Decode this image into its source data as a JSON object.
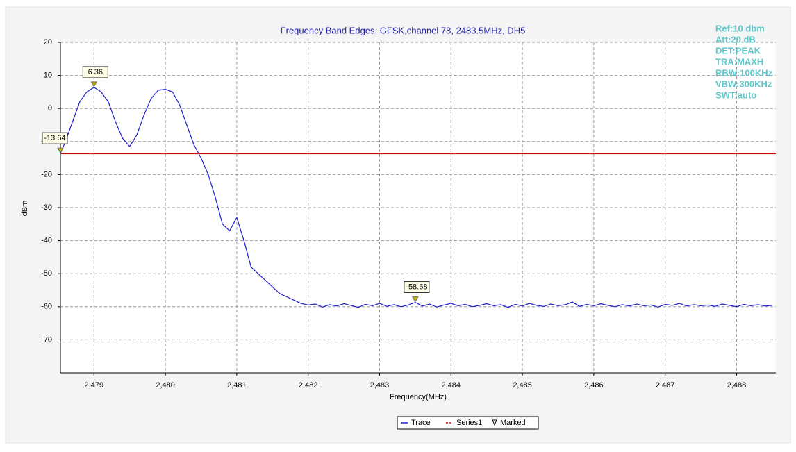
{
  "chart_data": {
    "type": "line",
    "title": "Frequency Band Edges, GFSK,channel 78, 2483.5MHz, DH5",
    "x_label": "Frequency(MHz)",
    "y_label": "dBm",
    "xlim": [
      2478.53,
      2488.55
    ],
    "ylim": [
      -80,
      20
    ],
    "xticks": [
      {
        "value": 2479,
        "label": "2,479"
      },
      {
        "value": 2480,
        "label": "2,480"
      },
      {
        "value": 2481,
        "label": "2,481"
      },
      {
        "value": 2482,
        "label": "2,482"
      },
      {
        "value": 2483,
        "label": "2,483"
      },
      {
        "value": 2484,
        "label": "2,484"
      },
      {
        "value": 2485,
        "label": "2,485"
      },
      {
        "value": 2486,
        "label": "2,486"
      },
      {
        "value": 2487,
        "label": "2,487"
      },
      {
        "value": 2488,
        "label": "2,488"
      }
    ],
    "yticks": [
      20,
      10,
      0,
      -10,
      -20,
      -30,
      -40,
      -50,
      -60,
      -70
    ],
    "grid": true,
    "series": [
      {
        "name": "Trace",
        "color": "#1c1cd0",
        "x": [
          2478.53,
          2478.6,
          2478.7,
          2478.8,
          2478.9,
          2479.0,
          2479.1,
          2479.2,
          2479.3,
          2479.4,
          2479.5,
          2479.6,
          2479.7,
          2479.8,
          2479.9,
          2480.0,
          2480.1,
          2480.2,
          2480.3,
          2480.4,
          2480.5,
          2480.6,
          2480.7,
          2480.8,
          2480.9,
          2481.0,
          2481.1,
          2481.2,
          2481.3,
          2481.4,
          2481.5,
          2481.6,
          2481.7,
          2481.8,
          2481.9,
          2482.0,
          2482.1,
          2482.2,
          2482.3,
          2482.4,
          2482.5,
          2482.6,
          2482.7,
          2482.8,
          2482.9,
          2483.0,
          2483.1,
          2483.2,
          2483.3,
          2483.4,
          2483.5,
          2483.6,
          2483.7,
          2483.8,
          2483.9,
          2484.0,
          2484.1,
          2484.2,
          2484.3,
          2484.4,
          2484.5,
          2484.6,
          2484.7,
          2484.8,
          2484.9,
          2485.0,
          2485.1,
          2485.2,
          2485.3,
          2485.4,
          2485.5,
          2485.6,
          2485.7,
          2485.8,
          2485.9,
          2486.0,
          2486.1,
          2486.2,
          2486.3,
          2486.4,
          2486.5,
          2486.6,
          2486.7,
          2486.8,
          2486.9,
          2487.0,
          2487.1,
          2487.2,
          2487.3,
          2487.4,
          2487.5,
          2487.6,
          2487.7,
          2487.8,
          2487.9,
          2488.0,
          2488.1,
          2488.2,
          2488.3,
          2488.4,
          2488.5
        ],
        "values": [
          -13.6,
          -10,
          -4,
          2,
          5,
          6.4,
          5,
          2,
          -4,
          -9,
          -11.5,
          -8,
          -2,
          3,
          5.5,
          5.8,
          5,
          1,
          -5,
          -11,
          -15,
          -20,
          -27,
          -35,
          -37,
          -33,
          -40,
          -48,
          -50,
          -52,
          -54,
          -56,
          -57,
          -58,
          -59,
          -59.5,
          -59.2,
          -60.1,
          -59.4,
          -59.8,
          -59.1,
          -59.6,
          -60.2,
          -59.3,
          -59.7,
          -59.0,
          -59.9,
          -59.4,
          -60.0,
          -59.5,
          -58.7,
          -59.8,
          -59.2,
          -60.1,
          -59.5,
          -59.0,
          -59.7,
          -59.3,
          -60.0,
          -59.6,
          -59.1,
          -59.7,
          -59.4,
          -60.2,
          -59.3,
          -59.8,
          -59.0,
          -59.6,
          -59.9,
          -59.2,
          -59.7,
          -59.4,
          -58.6,
          -59.9,
          -59.3,
          -59.7,
          -59.1,
          -59.6,
          -60.0,
          -59.4,
          -59.8,
          -59.2,
          -59.7,
          -59.5,
          -60.1,
          -59.3,
          -59.6,
          -59.0,
          -59.8,
          -59.4,
          -59.7,
          -59.5,
          -59.9,
          -59.2,
          -59.6,
          -60.0,
          -59.3,
          -59.7,
          -59.4,
          -59.8,
          -59.6
        ]
      },
      {
        "name": "Series1",
        "color": "#cc1010",
        "x": [
          2478.53,
          2488.55
        ],
        "values": [
          -13.64,
          -13.64
        ]
      }
    ],
    "markers": {
      "name": "Marked",
      "color": "#c8b400",
      "x": [
        2478.53,
        2479.0,
        2483.5
      ],
      "values": [
        -13.64,
        6.36,
        -58.68
      ]
    },
    "info": [
      "Ref:10 dbm",
      "Att:20 dB",
      "DET:PEAK",
      "TRA:MAXH",
      "RBW:100KHz",
      "VBW:300KHz",
      "SWT:auto"
    ]
  }
}
